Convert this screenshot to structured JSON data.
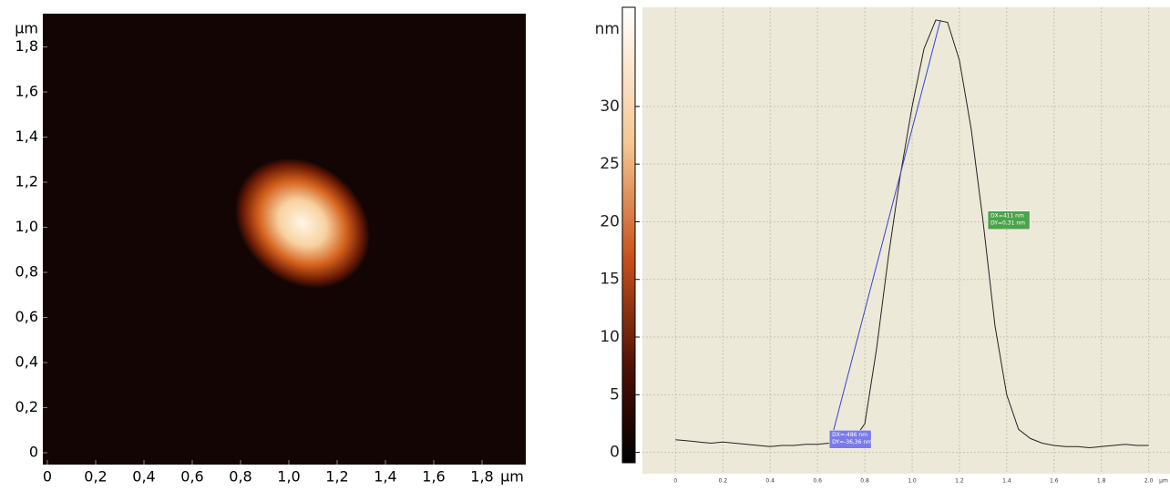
{
  "chart_data": [
    {
      "type": "heatmap",
      "xlabel": "μm",
      "ylabel": "μm",
      "xlim": [
        0,
        2
      ],
      "ylim": [
        0,
        2
      ],
      "xticks": [
        0,
        {
          "value": 0.2,
          "label": "0,2"
        },
        {
          "value": 0.4,
          "label": "0,4"
        },
        {
          "value": 0.6,
          "label": "0,6"
        },
        {
          "value": 0.8,
          "label": "0,8"
        },
        {
          "value": 1,
          "label": "1,0"
        },
        {
          "value": 1.2,
          "label": "1,2"
        },
        {
          "value": 1.4,
          "label": "1,4"
        },
        {
          "value": 1.6,
          "label": "1,6"
        },
        {
          "value": 1.8,
          "label": "1,8"
        }
      ],
      "yticks": [
        0,
        {
          "value": 0.2,
          "label": "0,2"
        },
        {
          "value": 0.4,
          "label": "0,4"
        },
        {
          "value": 0.6,
          "label": "0,6"
        },
        {
          "value": 0.8,
          "label": "0,8"
        },
        {
          "value": 1,
          "label": "1,0"
        },
        {
          "value": 1.2,
          "label": "1,2"
        },
        {
          "value": 1.4,
          "label": "1,4"
        },
        {
          "value": 1.6,
          "label": "1,6"
        },
        {
          "value": 1.8,
          "label": "1,8"
        }
      ]
    },
    {
      "type": "line",
      "ylabel": "nm",
      "xlabel": "μm",
      "color": "#222222",
      "x": [
        0,
        0.05,
        0.1,
        0.15,
        0.2,
        0.25,
        0.3,
        0.35,
        0.4,
        0.45,
        0.5,
        0.55,
        0.6,
        0.65,
        0.7,
        0.75,
        0.8,
        0.85,
        0.9,
        0.95,
        1,
        1.05,
        1.1,
        1.15,
        1.2,
        1.25,
        1.3,
        1.35,
        1.4,
        1.45,
        1.5,
        1.55,
        1.6,
        1.65,
        1.7,
        1.75,
        1.8,
        1.85,
        1.9,
        1.95,
        2
      ],
      "values": [
        1.1,
        1.0,
        0.9,
        0.8,
        0.9,
        0.8,
        0.7,
        0.6,
        0.5,
        0.6,
        0.6,
        0.7,
        0.7,
        0.8,
        0.9,
        1.0,
        2.5,
        9,
        17,
        24,
        30,
        35,
        37.5,
        37.3,
        34,
        28,
        20,
        11,
        5,
        2,
        1.2,
        0.8,
        0.6,
        0.5,
        0.5,
        0.4,
        0.5,
        0.6,
        0.7,
        0.6,
        0.6
      ],
      "xlim": [
        -0.14,
        2.09
      ],
      "ylim": [
        -0.9,
        38.6
      ],
      "xticks": [
        0,
        0.2,
        0.4,
        0.6,
        0.8,
        {
          "value": 1,
          "label": "1.0"
        },
        1.2,
        1.4,
        1.6,
        1.8,
        {
          "value": 2,
          "label": "2.0"
        }
      ],
      "yticks": [
        0,
        5,
        10,
        15,
        20,
        25,
        30
      ],
      "grid": true,
      "cursor_color": "#3344cc",
      "cursor": {
        "x": [
          0.65,
          1.12
        ],
        "y": [
          0.5,
          37.5
        ]
      },
      "annotations": [
        {
          "lines": [
            "DX=-486 nm",
            "DY=-36,36 nm"
          ],
          "x": 0.65,
          "y": 0.5,
          "color": "#7a7ae8"
        },
        {
          "lines": [
            "DX=411 nm",
            "DY=0,31 nm"
          ],
          "x": 1.32,
          "y": 19.5,
          "color": "#4ca34c"
        }
      ]
    }
  ]
}
